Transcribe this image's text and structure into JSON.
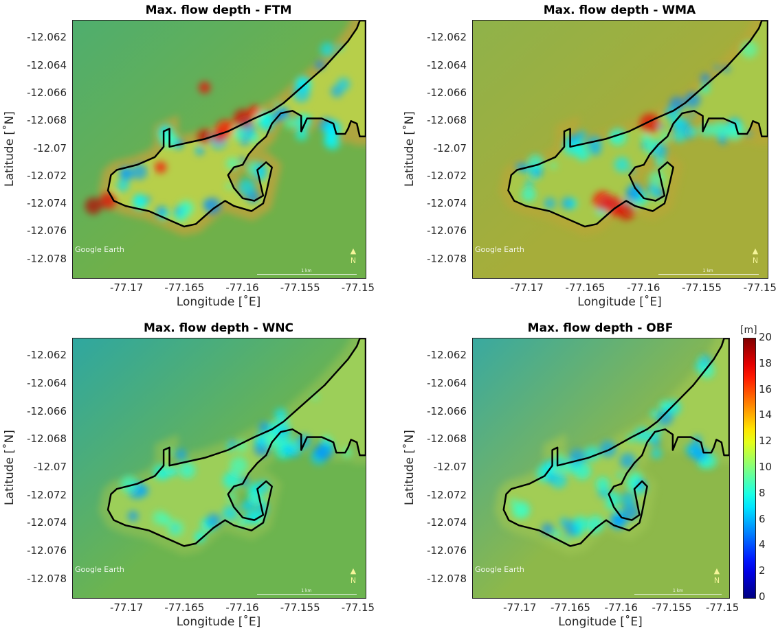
{
  "panels": [
    {
      "title": "Max. flow depth - FTM",
      "xlabel": "Longitude [˚E]",
      "ylabel": "Latitude [˚N]",
      "watermark": "Google Earth",
      "scale_label": "1 km",
      "north_label": "N"
    },
    {
      "title": "Max. flow depth - WMA",
      "xlabel": "Longitude [˚E]",
      "ylabel": "Latitude [˚N]",
      "watermark": "Google Earth",
      "scale_label": "1 km",
      "north_label": "N"
    },
    {
      "title": "Max. flow depth - WNC",
      "xlabel": "Longitude [˚E]",
      "ylabel": "Latitude [˚N]",
      "watermark": "Google Earth",
      "scale_label": "1 km",
      "north_label": "N"
    },
    {
      "title": "Max. flow depth - OBF",
      "xlabel": "Longitude [˚E]",
      "ylabel": "Latitude [˚N]",
      "watermark": "Google Earth",
      "scale_label": "1 km",
      "north_label": "N"
    }
  ],
  "colorbar": {
    "unit": "[m]",
    "ticks": [
      "0",
      "2",
      "4",
      "6",
      "8",
      "10",
      "12",
      "14",
      "16",
      "18",
      "20"
    ],
    "colormap": "jet"
  },
  "chart_data": [
    {
      "type": "heatmap",
      "title": "Max. flow depth - FTM",
      "xlabel": "Longitude [˚E]",
      "ylabel": "Latitude [˚N]",
      "xticks": [
        "-77.17",
        "-77.165",
        "-77.16",
        "-77.155",
        "-77.15"
      ],
      "yticks": [
        "-12.062",
        "-12.064",
        "-12.066",
        "-12.068",
        "-12.07",
        "-12.072",
        "-12.074",
        "-12.076",
        "-12.078"
      ],
      "xlim": [
        -77.1747,
        -77.1494
      ],
      "ylim": [
        -12.0793,
        -12.0607
      ],
      "clim": [
        0,
        20
      ],
      "units": "m"
    },
    {
      "type": "heatmap",
      "title": "Max. flow depth - WMA",
      "xlabel": "Longitude [˚E]",
      "ylabel": "Latitude [˚N]",
      "xticks": [
        "-77.17",
        "-77.165",
        "-77.16",
        "-77.155",
        "-77.15"
      ],
      "yticks": [
        "-12.062",
        "-12.064",
        "-12.066",
        "-12.068",
        "-12.07",
        "-12.072",
        "-12.074",
        "-12.076",
        "-12.078"
      ],
      "xlim": [
        -77.1747,
        -77.1494
      ],
      "ylim": [
        -12.0793,
        -12.0607
      ],
      "clim": [
        0,
        20
      ],
      "units": "m"
    },
    {
      "type": "heatmap",
      "title": "Max. flow depth - WNC",
      "xlabel": "Longitude [˚E]",
      "ylabel": "Latitude [˚N]",
      "xticks": [
        "-77.17",
        "-77.165",
        "-77.16",
        "-77.155",
        "-77.15"
      ],
      "yticks": [
        "-12.062",
        "-12.064",
        "-12.066",
        "-12.068",
        "-12.07",
        "-12.072",
        "-12.074",
        "-12.076",
        "-12.078"
      ],
      "xlim": [
        -77.1747,
        -77.1494
      ],
      "ylim": [
        -12.0793,
        -12.0607
      ],
      "clim": [
        0,
        20
      ],
      "units": "m"
    },
    {
      "type": "heatmap",
      "title": "Max. flow depth - OBF",
      "xlabel": "Longitude [˚E]",
      "ylabel": "Latitude [˚N]",
      "xticks": [
        "-77.17",
        "-77.165",
        "-77.16",
        "-77.155",
        "-77.15"
      ],
      "yticks": [
        "-12.062",
        "-12.064",
        "-12.066",
        "-12.068",
        "-12.07",
        "-12.072",
        "-12.074",
        "-12.076",
        "-12.078"
      ],
      "xlim": [
        -77.1747,
        -77.1494
      ],
      "ylim": [
        -12.0793,
        -12.0607
      ],
      "clim": [
        0,
        20
      ],
      "units": "m"
    }
  ]
}
